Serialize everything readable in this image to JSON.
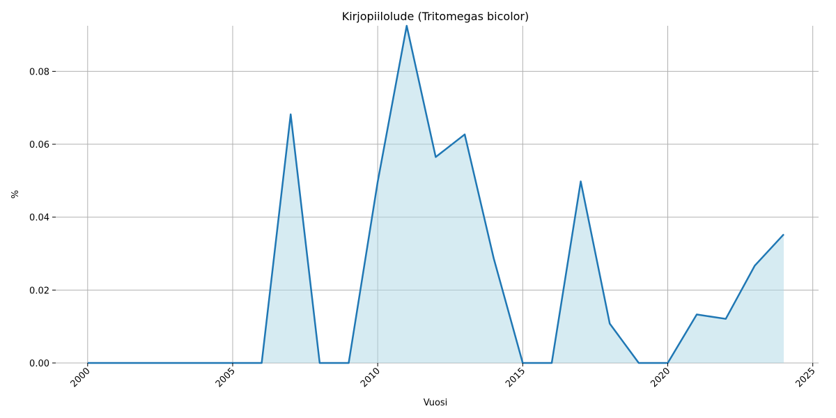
{
  "chart_data": {
    "type": "area",
    "title": "Kirjopiilolude (Tritomegas bicolor)",
    "xlabel": "Vuosi",
    "ylabel": "%",
    "xlim": [
      1998.9,
      2025.2
    ],
    "ylim": [
      0,
      0.0925
    ],
    "x_ticks": [
      2000,
      2005,
      2010,
      2015,
      2020,
      2025
    ],
    "y_ticks": [
      0.0,
      0.02,
      0.04,
      0.06,
      0.08
    ],
    "y_tick_labels": [
      "0.00",
      "0.02",
      "0.04",
      "0.06",
      "0.08"
    ],
    "grid": true,
    "line_color": "#1f77b4",
    "fill_color": "#add8e6",
    "x": [
      2000,
      2001,
      2002,
      2003,
      2004,
      2005,
      2006,
      2007,
      2008,
      2009,
      2010,
      2011,
      2012,
      2013,
      2014,
      2015,
      2016,
      2017,
      2018,
      2019,
      2020,
      2021,
      2022,
      2023,
      2024
    ],
    "values": [
      0,
      0,
      0,
      0,
      0,
      0,
      0,
      0.0682,
      0,
      0,
      0.0497,
      0.0925,
      0.0565,
      0.0627,
      0.0287,
      0,
      0,
      0.0498,
      0.0108,
      0,
      0,
      0.0133,
      0.0121,
      0.0267,
      0.0353
    ]
  }
}
